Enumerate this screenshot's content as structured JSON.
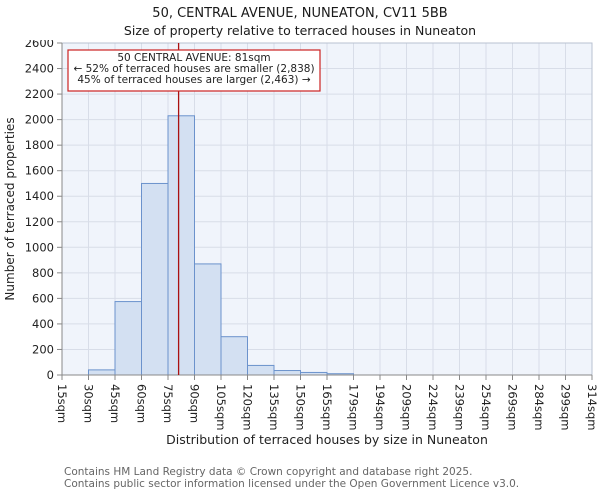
{
  "chart_data": {
    "type": "bar",
    "title": "50, CENTRAL AVENUE, NUNEATON, CV11 5BB",
    "subtitle": "Size of property relative to terraced houses in Nuneaton",
    "xlabel": "Distribution of terraced houses by size in Nuneaton",
    "ylabel": "Number of terraced properties",
    "categories": [
      "15sqm",
      "30sqm",
      "45sqm",
      "60sqm",
      "75sqm",
      "90sqm",
      "105sqm",
      "120sqm",
      "135sqm",
      "150sqm",
      "165sqm",
      "179sqm",
      "194sqm",
      "209sqm",
      "224sqm",
      "239sqm",
      "254sqm",
      "269sqm",
      "284sqm",
      "299sqm",
      "314sqm"
    ],
    "values": [
      0,
      40,
      575,
      1500,
      2030,
      870,
      300,
      75,
      35,
      20,
      10,
      0,
      0,
      0,
      0,
      0,
      0,
      0,
      0,
      0
    ],
    "ylim": [
      0,
      2600
    ],
    "ytick_step": 200,
    "grid": true,
    "marker": {
      "value_sqm": 81,
      "label": "81sqm"
    },
    "annotation": {
      "line1": "50 CENTRAL AVENUE: 81sqm",
      "line2": "← 52% of terraced houses are smaller (2,838)",
      "line3": "45% of terraced houses are larger (2,463) →"
    },
    "colors": {
      "bar_fill": "#d3e0f2",
      "bar_border": "#6b92cc",
      "marker_line": "#aa1111",
      "annotation_border": "#cc2222",
      "grid": "#d8dde8",
      "plot_bg": "#f0f4fb",
      "axis": "#888888"
    }
  },
  "footer": {
    "line1": "Contains HM Land Registry data © Crown copyright and database right 2025.",
    "line2": "Contains public sector information licensed under the Open Government Licence v3.0."
  }
}
